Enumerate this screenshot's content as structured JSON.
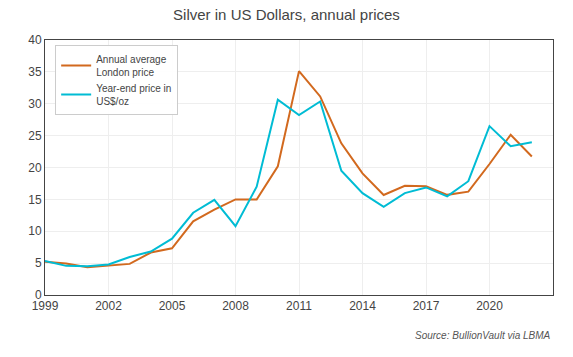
{
  "chart_data": {
    "type": "line",
    "title": "Silver in US Dollars, annual prices",
    "annotations": [
      "Source: BullionVault via LBMA"
    ],
    "series": [
      {
        "name": "Annual average\nLondon price",
        "color": "#d2691e",
        "x": [
          1999,
          2000,
          2001,
          2002,
          2003,
          2004,
          2005,
          2006,
          2007,
          2008,
          2009,
          2010,
          2011,
          2012,
          2013,
          2014,
          2015,
          2016,
          2017,
          2018,
          2019,
          2020,
          2021,
          2022
        ],
        "values": [
          5.22,
          4.95,
          4.37,
          4.6,
          4.88,
          6.66,
          7.32,
          11.55,
          13.38,
          15.0,
          14.99,
          20.19,
          35.12,
          31.15,
          23.79,
          19.08,
          15.68,
          17.14,
          17.05,
          15.71,
          16.21,
          20.55,
          25.14,
          21.73
        ]
      },
      {
        "name": "Year-end price in\nUS$/oz",
        "color": "#00bcd4",
        "x": [
          1999,
          2000,
          2001,
          2002,
          2003,
          2004,
          2005,
          2006,
          2007,
          2008,
          2009,
          2010,
          2011,
          2012,
          2013,
          2014,
          2015,
          2016,
          2017,
          2018,
          2019,
          2020,
          2021,
          2022
        ],
        "values": [
          5.33,
          4.57,
          4.52,
          4.79,
          5.97,
          6.82,
          8.83,
          12.9,
          14.93,
          10.79,
          17.0,
          30.63,
          28.23,
          30.35,
          19.5,
          15.97,
          13.82,
          15.99,
          16.87,
          15.47,
          17.85,
          26.49,
          23.35,
          23.97
        ]
      }
    ],
    "xlim": [
      1999,
      2023
    ],
    "xticks": [
      1999,
      2002,
      2005,
      2008,
      2011,
      2014,
      2017,
      2020
    ],
    "ylim": [
      0,
      40
    ],
    "yticks": [
      0,
      5,
      10,
      15,
      20,
      25,
      30,
      35,
      40
    ],
    "grid": true,
    "legend": "upper left"
  }
}
